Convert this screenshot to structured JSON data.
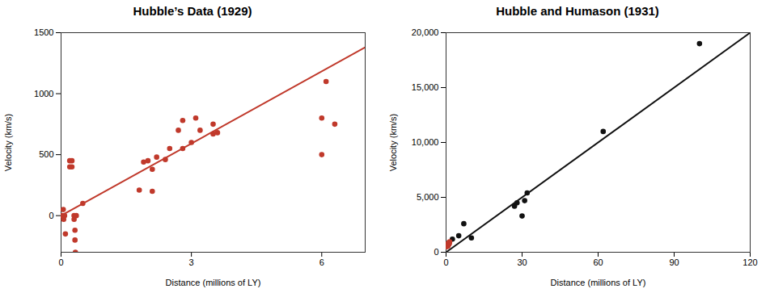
{
  "chart_data": [
    {
      "type": "scatter",
      "title": "Hubble’s Data (1929)",
      "xlabel": "Distance (millions of LY)",
      "ylabel": "Velocity (km/s)",
      "xlim": [
        0,
        7
      ],
      "ylim": [
        -300,
        1500
      ],
      "xticks": [
        0,
        3,
        6
      ],
      "yticks": [
        0,
        500,
        1000,
        1500
      ],
      "series": [
        {
          "type": "scatter",
          "color": "#c0392b",
          "x": [
            0.03,
            0.05,
            0.06,
            0.08,
            0.1,
            0.2,
            0.2,
            0.25,
            0.25,
            0.3,
            0.3,
            0.32,
            0.32,
            0.33,
            0.35,
            0.5,
            1.8,
            1.9,
            2.0,
            2.1,
            2.1,
            2.2,
            2.4,
            2.5,
            2.7,
            2.8,
            2.8,
            3.0,
            3.1,
            3.2,
            3.5,
            3.5,
            3.6,
            6.0,
            6.0,
            6.1,
            6.3
          ],
          "values": [
            0,
            50,
            -30,
            0,
            -150,
            450,
            400,
            400,
            450,
            0,
            -30,
            -120,
            -200,
            -300,
            0,
            100,
            210,
            440,
            450,
            380,
            200,
            480,
            460,
            550,
            700,
            780,
            550,
            600,
            800,
            700,
            750,
            670,
            680,
            500,
            800,
            1100,
            750
          ]
        },
        {
          "type": "line",
          "color": "#c0392b",
          "x": [
            0,
            7
          ],
          "values": [
            0,
            1380
          ]
        }
      ]
    },
    {
      "type": "scatter",
      "title": "Hubble and Humason (1931)",
      "xlabel": "Distance (millions of LY)",
      "ylabel": "Velocity (km/s)",
      "xlim": [
        0,
        120
      ],
      "ylim": [
        0,
        20000
      ],
      "xticks": [
        0,
        30,
        60,
        90,
        120
      ],
      "yticks": [
        0,
        {
          "value": 5000,
          "label": "5,000"
        },
        {
          "value": 10000,
          "label": "10,000"
        },
        {
          "value": 15000,
          "label": "15,000"
        },
        {
          "value": 20000,
          "label": "20,000"
        }
      ],
      "series": [
        {
          "type": "scatter",
          "color": "#111111",
          "x": [
            2.5,
            5.0,
            7.0,
            10.0,
            27.0,
            28.0,
            30.0,
            31.0,
            32.0,
            62.0,
            100.0
          ],
          "values": [
            1200,
            1500,
            2600,
            1300,
            4200,
            4500,
            3300,
            4700,
            5400,
            11000,
            19000
          ]
        },
        {
          "type": "scatter",
          "color": "#c0392b",
          "x": [
            0.2,
            0.3,
            0.4,
            0.5,
            0.6,
            0.7,
            0.8,
            0.9,
            1.0,
            1.1,
            1.2,
            1.3,
            1.4
          ],
          "values": [
            500,
            650,
            700,
            750,
            700,
            550,
            600,
            800,
            700,
            750,
            900,
            800,
            950
          ]
        },
        {
          "type": "line",
          "color": "#111111",
          "x": [
            0,
            120
          ],
          "values": [
            0,
            20000
          ]
        }
      ]
    }
  ]
}
